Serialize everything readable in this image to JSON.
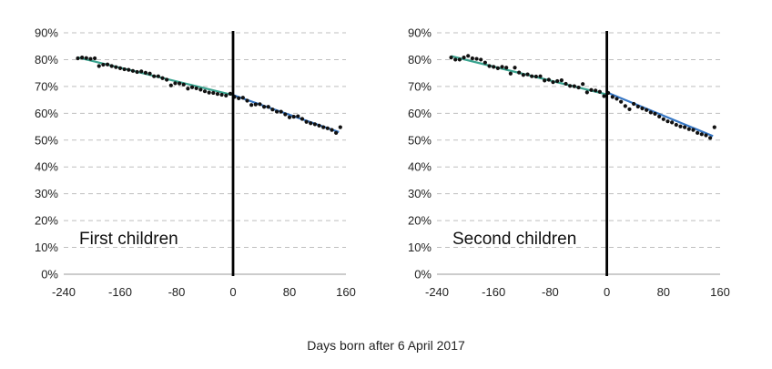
{
  "xlabel": "Days born after 6 April 2017",
  "colors": {
    "before_fit": "#3aa38f",
    "after_fit": "#3777c4",
    "points": "#111111",
    "cutoff": "#000000",
    "grid": "#bfbfbf"
  },
  "chart_data": [
    {
      "type": "scatter",
      "panel_label": "First children",
      "xlim": [
        -240,
        160
      ],
      "ylim": [
        0,
        0.9
      ],
      "xticks": [
        -240,
        -160,
        -80,
        0,
        80,
        160
      ],
      "xtick_labels": [
        "-240",
        "-160",
        "-80",
        "0",
        "80",
        "160"
      ],
      "yticks": [
        0,
        0.1,
        0.2,
        0.3,
        0.4,
        0.5,
        0.6,
        0.7,
        0.8,
        0.9
      ],
      "ytick_labels": [
        "0%",
        "10%",
        "20%",
        "30%",
        "40%",
        "50%",
        "60%",
        "70%",
        "80%",
        "90%"
      ],
      "grid": true,
      "cutoff_x": 0,
      "fit_before": {
        "x": [
          -220,
          0
        ],
        "y": [
          0.808,
          0.668
        ]
      },
      "fit_after": {
        "x": [
          0,
          150
        ],
        "y": [
          0.668,
          0.53
        ]
      },
      "points": {
        "x": [
          -220,
          -214,
          -208,
          -202,
          -196,
          -190,
          -184,
          -178,
          -172,
          -166,
          -160,
          -154,
          -148,
          -142,
          -136,
          -130,
          -124,
          -118,
          -112,
          -106,
          -100,
          -94,
          -88,
          -82,
          -76,
          -70,
          -64,
          -58,
          -52,
          -46,
          -40,
          -34,
          -28,
          -22,
          -16,
          -10,
          -4,
          2,
          8,
          14,
          20,
          26,
          32,
          38,
          44,
          50,
          56,
          62,
          68,
          74,
          80,
          86,
          92,
          98,
          104,
          110,
          116,
          122,
          128,
          134,
          140,
          146,
          152
        ],
        "y": [
          0.805,
          0.808,
          0.806,
          0.803,
          0.805,
          0.776,
          0.781,
          0.782,
          0.776,
          0.772,
          0.768,
          0.764,
          0.762,
          0.758,
          0.754,
          0.756,
          0.751,
          0.748,
          0.738,
          0.738,
          0.731,
          0.725,
          0.704,
          0.712,
          0.711,
          0.707,
          0.692,
          0.697,
          0.693,
          0.688,
          0.682,
          0.677,
          0.676,
          0.672,
          0.669,
          0.666,
          0.673,
          0.661,
          0.656,
          0.658,
          0.647,
          0.631,
          0.633,
          0.634,
          0.624,
          0.624,
          0.614,
          0.606,
          0.606,
          0.596,
          0.585,
          0.587,
          0.589,
          0.579,
          0.568,
          0.563,
          0.559,
          0.554,
          0.548,
          0.544,
          0.538,
          0.527,
          0.548
        ]
      }
    },
    {
      "type": "scatter",
      "panel_label": "Second children",
      "xlim": [
        -240,
        160
      ],
      "ylim": [
        0,
        0.9
      ],
      "xticks": [
        -240,
        -160,
        -80,
        0,
        80,
        160
      ],
      "xtick_labels": [
        "-240",
        "-160",
        "-80",
        "0",
        "80",
        "160"
      ],
      "yticks": [
        0,
        0.1,
        0.2,
        0.3,
        0.4,
        0.5,
        0.6,
        0.7,
        0.8,
        0.9
      ],
      "ytick_labels": [
        "0%",
        "10%",
        "20%",
        "30%",
        "40%",
        "50%",
        "60%",
        "70%",
        "80%",
        "90%"
      ],
      "grid": true,
      "cutoff_x": 0,
      "fit_before": {
        "x": [
          -220,
          0
        ],
        "y": [
          0.813,
          0.67
        ]
      },
      "fit_after": {
        "x": [
          0,
          150
        ],
        "y": [
          0.678,
          0.515
        ]
      },
      "points": {
        "x": [
          -220,
          -214,
          -208,
          -202,
          -196,
          -190,
          -184,
          -178,
          -172,
          -166,
          -160,
          -154,
          -148,
          -142,
          -136,
          -130,
          -124,
          -118,
          -112,
          -106,
          -100,
          -94,
          -88,
          -82,
          -76,
          -70,
          -64,
          -58,
          -52,
          -46,
          -40,
          -34,
          -28,
          -22,
          -16,
          -10,
          -4,
          2,
          8,
          14,
          20,
          26,
          32,
          38,
          44,
          50,
          56,
          62,
          68,
          74,
          80,
          86,
          92,
          98,
          104,
          110,
          116,
          122,
          128,
          134,
          140,
          146,
          152
        ],
        "y": [
          0.808,
          0.8,
          0.8,
          0.808,
          0.814,
          0.805,
          0.803,
          0.8,
          0.789,
          0.776,
          0.773,
          0.768,
          0.773,
          0.77,
          0.748,
          0.77,
          0.752,
          0.743,
          0.745,
          0.738,
          0.737,
          0.738,
          0.722,
          0.725,
          0.716,
          0.72,
          0.723,
          0.71,
          0.702,
          0.701,
          0.696,
          0.709,
          0.678,
          0.687,
          0.685,
          0.68,
          0.664,
          0.676,
          0.661,
          0.654,
          0.643,
          0.627,
          0.615,
          0.635,
          0.625,
          0.618,
          0.612,
          0.603,
          0.598,
          0.588,
          0.578,
          0.57,
          0.566,
          0.557,
          0.551,
          0.548,
          0.541,
          0.538,
          0.527,
          0.522,
          0.518,
          0.508,
          0.548
        ]
      }
    }
  ]
}
